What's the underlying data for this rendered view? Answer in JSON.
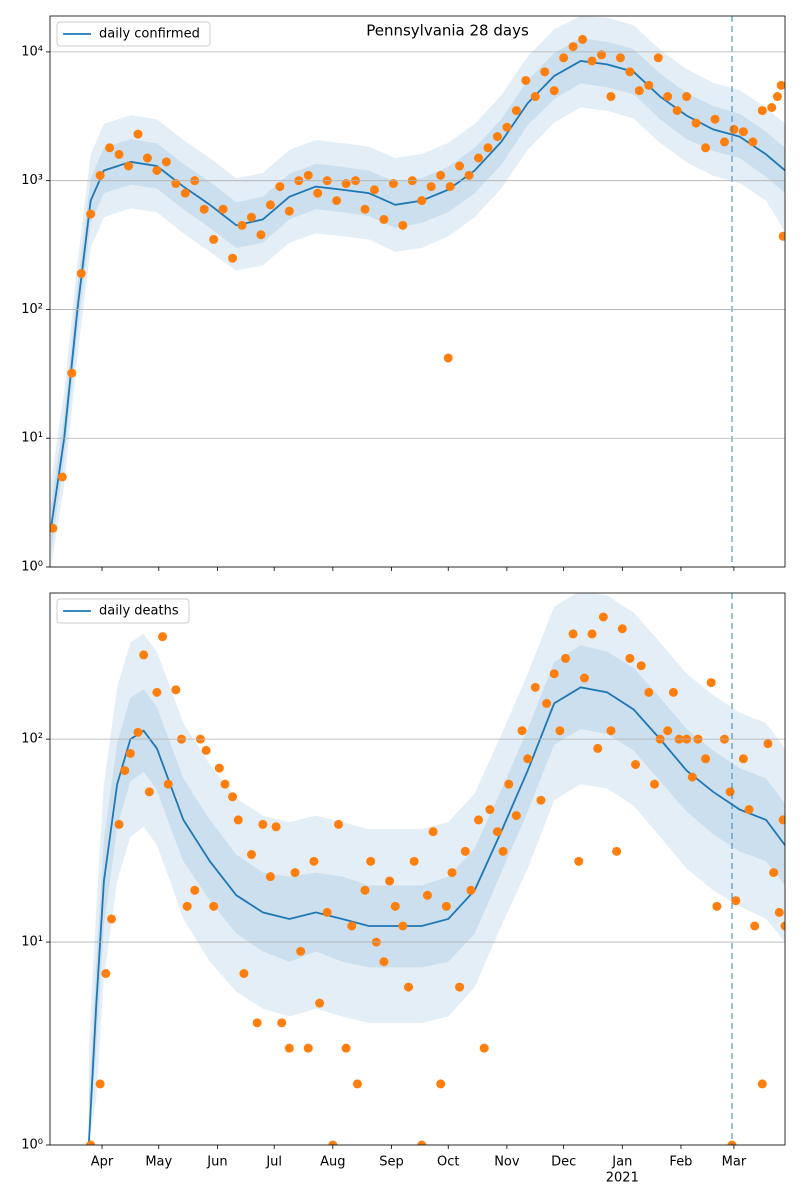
{
  "chart_data": [
    {
      "type": "line",
      "title": "Pennsylvania 28 days",
      "log_scale": true,
      "grid": true,
      "legend": "upper left",
      "xlim": [
        3.5,
        392
      ],
      "ylim": [
        1,
        19000
      ],
      "xticks": [
        {
          "value": 31,
          "label": "Apr"
        },
        {
          "value": 61,
          "label": "May"
        },
        {
          "value": 92,
          "label": "Jun"
        },
        {
          "value": 122,
          "label": "Jul"
        },
        {
          "value": 153,
          "label": "Aug"
        },
        {
          "value": 184,
          "label": "Sep"
        },
        {
          "value": 214,
          "label": "Oct"
        },
        {
          "value": 245,
          "label": "Nov"
        },
        {
          "value": 275,
          "label": "Dec"
        },
        {
          "value": 306,
          "label": "Jan"
        },
        {
          "value": 337,
          "label": "Feb"
        },
        {
          "value": 365,
          "label": "Mar"
        }
      ],
      "yticks": [
        {
          "value": 1,
          "label": "10⁰"
        },
        {
          "value": 10,
          "label": "10¹"
        },
        {
          "value": 100,
          "label": "10²"
        },
        {
          "value": 1000,
          "label": "10³"
        },
        {
          "value": 10000,
          "label": "10⁴"
        }
      ],
      "vline_x": 364,
      "series": [
        {
          "name": "daily confirmed",
          "color": "#1f77b4",
          "x": [
            4,
            11,
            18,
            25,
            32,
            46,
            60,
            74,
            88,
            102,
            116,
            130,
            144,
            158,
            172,
            186,
            200,
            214,
            228,
            242,
            256,
            270,
            284,
            298,
            312,
            326,
            340,
            354,
            368,
            382,
            392
          ],
          "values": [
            2,
            10,
            100,
            700,
            1200,
            1400,
            1300,
            900,
            650,
            450,
            500,
            750,
            900,
            850,
            800,
            650,
            700,
            850,
            1200,
            2000,
            4000,
            6500,
            8500,
            8000,
            7000,
            4500,
            3200,
            2500,
            2200,
            1600,
            1200
          ],
          "bands": [
            {
              "lower": [
                1,
                4.3,
                43,
                300,
                520,
                610,
                570,
                390,
                280,
                200,
                220,
                330,
                390,
                370,
                350,
                280,
                300,
                370,
                520,
                870,
                1740,
                2830,
                3700,
                3480,
                3040,
                1960,
                1390,
                1090,
                960,
                700,
                400
              ],
              "upper": [
                4.6,
                23,
                230,
                1600,
                2760,
                3220,
                3000,
                2070,
                1500,
                1040,
                1150,
                1730,
                2070,
                1960,
                1840,
                1500,
                1610,
                1960,
                2760,
                4600,
                9200,
                15000,
                19000,
                18400,
                16100,
                10400,
                7360,
                5750,
                5060,
                3680,
                2760
              ]
            },
            {
              "lower": [
                1.3,
                7,
                67,
                470,
                800,
                930,
                870,
                600,
                430,
                300,
                330,
                500,
                600,
                570,
                530,
                430,
                470,
                570,
                800,
                1330,
                2700,
                4300,
                5700,
                5300,
                4700,
                3000,
                2100,
                1700,
                1500,
                1070,
                800
              ],
              "upper": [
                3,
                15,
                150,
                1050,
                1800,
                2100,
                1950,
                1350,
                980,
                680,
                750,
                1130,
                1350,
                1280,
                1200,
                980,
                1050,
                1280,
                1800,
                3000,
                6000,
                9800,
                12800,
                12000,
                10500,
                6800,
                4800,
                3800,
                3300,
                2400,
                1800
              ]
            }
          ]
        }
      ],
      "points": {
        "color": "#ff7f0e",
        "x": [
          5,
          10,
          15,
          20,
          25,
          30,
          35,
          40,
          45,
          50,
          55,
          60,
          65,
          70,
          75,
          80,
          85,
          90,
          95,
          100,
          105,
          110,
          115,
          120,
          125,
          130,
          135,
          140,
          145,
          150,
          155,
          160,
          165,
          170,
          175,
          180,
          185,
          190,
          195,
          200,
          205,
          210,
          214,
          215,
          220,
          225,
          230,
          235,
          240,
          245,
          250,
          255,
          260,
          265,
          270,
          275,
          280,
          285,
          290,
          295,
          300,
          305,
          310,
          315,
          320,
          325,
          330,
          335,
          340,
          345,
          350,
          355,
          360,
          365,
          370,
          375,
          380,
          385,
          388,
          390,
          391
        ],
        "values": [
          2,
          5,
          32,
          190,
          550,
          1100,
          1800,
          1600,
          1300,
          2300,
          1500,
          1200,
          1400,
          950,
          800,
          1000,
          600,
          350,
          600,
          250,
          450,
          520,
          380,
          650,
          900,
          580,
          1000,
          1100,
          800,
          1000,
          700,
          950,
          1000,
          600,
          850,
          500,
          950,
          450,
          1000,
          700,
          900,
          1100,
          42,
          900,
          1300,
          1100,
          1500,
          1800,
          2200,
          2600,
          3500,
          6000,
          4500,
          7000,
          5000,
          9000,
          11000,
          12500,
          8500,
          9500,
          4500,
          9000,
          7000,
          5000,
          5500,
          9000,
          4500,
          3500,
          4500,
          2800,
          1800,
          3000,
          2000,
          2500,
          2400,
          2000,
          3500,
          3700,
          4500,
          5500,
          370
        ]
      }
    },
    {
      "type": "line",
      "log_scale": true,
      "grid": true,
      "legend": "upper left",
      "xlim": [
        3.5,
        392
      ],
      "ylim": [
        1,
        525
      ],
      "xticks": [
        {
          "value": 31,
          "label": "Apr"
        },
        {
          "value": 61,
          "label": "May"
        },
        {
          "value": 92,
          "label": "Jun"
        },
        {
          "value": 122,
          "label": "Jul"
        },
        {
          "value": 153,
          "label": "Aug"
        },
        {
          "value": 184,
          "label": "Sep"
        },
        {
          "value": 214,
          "label": "Oct"
        },
        {
          "value": 245,
          "label": "Nov"
        },
        {
          "value": 275,
          "label": "Dec"
        },
        {
          "value": 306,
          "label": "Jan"
        },
        {
          "value": 337,
          "label": "Feb"
        },
        {
          "value": 365,
          "label": "Mar"
        }
      ],
      "x_year_label": "2021",
      "yticks": [
        {
          "value": 1,
          "label": "10⁰"
        },
        {
          "value": 10,
          "label": "10¹"
        },
        {
          "value": 100,
          "label": "10²"
        }
      ],
      "vline_x": 364,
      "series": [
        {
          "name": "daily deaths",
          "color": "#1f77b4",
          "x": [
            24,
            28,
            32,
            39,
            46,
            53,
            60,
            67,
            74,
            88,
            102,
            116,
            130,
            144,
            158,
            172,
            186,
            200,
            214,
            228,
            242,
            256,
            270,
            284,
            298,
            312,
            326,
            340,
            354,
            368,
            382,
            392
          ],
          "values": [
            1,
            5,
            20,
            60,
            100,
            110,
            90,
            60,
            40,
            25,
            17,
            14,
            13,
            14,
            13,
            12,
            12,
            12,
            13,
            18,
            35,
            70,
            150,
            180,
            170,
            140,
            100,
            70,
            55,
            45,
            40,
            30
          ],
          "bands": [
            {
              "lower": [
                1,
                1.7,
                6.7,
                20,
                33,
                37,
                30,
                20,
                13,
                8,
                5.7,
                4.7,
                4.3,
                4.7,
                4.3,
                4,
                4,
                4,
                4.3,
                6,
                12,
                23,
                50,
                60,
                57,
                47,
                33,
                23,
                18,
                15,
                13,
                10
              ],
              "upper": [
                3,
                15,
                60,
                180,
                300,
                330,
                270,
                180,
                120,
                75,
                51,
                42,
                39,
                42,
                39,
                36,
                36,
                36,
                39,
                54,
                105,
                210,
                450,
                540,
                510,
                420,
                300,
                210,
                165,
                135,
                120,
                90
              ]
            },
            {
              "lower": [
                1,
                3,
                12,
                37,
                62,
                69,
                56,
                37,
                25,
                16,
                11,
                9,
                8,
                9,
                8,
                7.5,
                7.5,
                7.5,
                8,
                11,
                22,
                44,
                94,
                112,
                106,
                88,
                62,
                44,
                34,
                28,
                25,
                19
              ],
              "upper": [
                1.6,
                8,
                32,
                96,
                160,
                176,
                144,
                96,
                64,
                40,
                27,
                22,
                21,
                22,
                21,
                19,
                19,
                19,
                21,
                29,
                56,
                112,
                240,
                290,
                270,
                224,
                160,
                112,
                88,
                72,
                64,
                48
              ]
            }
          ]
        }
      ],
      "points": {
        "color": "#ff7f0e",
        "x": [
          25,
          30,
          33,
          36,
          40,
          43,
          46,
          50,
          53,
          56,
          60,
          63,
          66,
          70,
          73,
          76,
          80,
          83,
          86,
          90,
          93,
          96,
          100,
          103,
          106,
          110,
          113,
          116,
          120,
          123,
          126,
          130,
          133,
          136,
          140,
          143,
          146,
          150,
          153,
          156,
          160,
          163,
          166,
          170,
          173,
          176,
          180,
          183,
          186,
          190,
          193,
          196,
          200,
          203,
          206,
          210,
          213,
          216,
          220,
          223,
          226,
          230,
          233,
          236,
          240,
          243,
          246,
          250,
          253,
          256,
          260,
          263,
          266,
          270,
          273,
          276,
          280,
          283,
          286,
          290,
          293,
          296,
          300,
          303,
          306,
          310,
          313,
          316,
          320,
          323,
          326,
          330,
          333,
          336,
          340,
          343,
          346,
          350,
          353,
          356,
          360,
          363,
          364,
          366,
          370,
          373,
          376,
          380,
          383,
          386,
          389,
          391,
          392
        ],
        "values": [
          1,
          2,
          7,
          13,
          38,
          70,
          85,
          108,
          260,
          55,
          170,
          320,
          60,
          175,
          100,
          15,
          18,
          100,
          88,
          15,
          72,
          60,
          52,
          40,
          7,
          27,
          4,
          38,
          21,
          37,
          4,
          3,
          22,
          9,
          3,
          25,
          5,
          14,
          1,
          38,
          3,
          12,
          2,
          18,
          25,
          10,
          8,
          20,
          15,
          12,
          6,
          25,
          1,
          17,
          35,
          2,
          15,
          22,
          6,
          28,
          18,
          40,
          3,
          45,
          35,
          28,
          60,
          42,
          110,
          80,
          180,
          50,
          150,
          210,
          110,
          250,
          330,
          25,
          200,
          330,
          90,
          400,
          110,
          28,
          350,
          250,
          75,
          230,
          170,
          60,
          100,
          110,
          170,
          100,
          100,
          65,
          100,
          80,
          190,
          15,
          100,
          55,
          1,
          16,
          80,
          45,
          12,
          2,
          95,
          22,
          14,
          40,
          12
        ]
      }
    }
  ]
}
